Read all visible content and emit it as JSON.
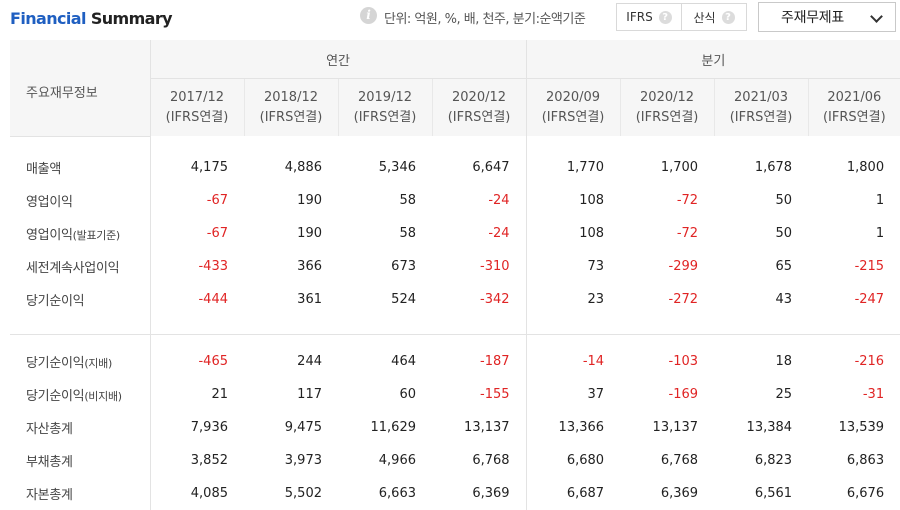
{
  "header": {
    "title_part1": "Financial",
    "title_part2": "Summary",
    "unit_text": "단위: 억원, %, 배, 천주, 분기:순액기준",
    "ifrs_label": "IFRS",
    "sansik_label": "산식",
    "dropdown_value": "주재무제표"
  },
  "table": {
    "first_header": "주요재무정보",
    "annual_header": "연간",
    "quarter_header": "분기",
    "periods": [
      {
        "date": "2017/12",
        "basis": "(IFRS연결)"
      },
      {
        "date": "2018/12",
        "basis": "(IFRS연결)"
      },
      {
        "date": "2019/12",
        "basis": "(IFRS연결)"
      },
      {
        "date": "2020/12",
        "basis": "(IFRS연결)"
      },
      {
        "date": "2020/09",
        "basis": "(IFRS연결)"
      },
      {
        "date": "2020/12",
        "basis": "(IFRS연결)"
      },
      {
        "date": "2021/03",
        "basis": "(IFRS연결)"
      },
      {
        "date": "2021/06",
        "basis": "(IFRS연결)"
      }
    ],
    "rows": [
      {
        "label": "매출액",
        "values": [
          "4,175",
          "4,886",
          "5,346",
          "6,647",
          "1,770",
          "1,700",
          "1,678",
          "1,800"
        ]
      },
      {
        "label": "영업이익",
        "values": [
          "-67",
          "190",
          "58",
          "-24",
          "108",
          "-72",
          "50",
          "1"
        ]
      },
      {
        "label_main": "영업이익",
        "label_sub": "(발표기준)",
        "values": [
          "-67",
          "190",
          "58",
          "-24",
          "108",
          "-72",
          "50",
          "1"
        ]
      },
      {
        "label": "세전계속사업이익",
        "values": [
          "-433",
          "366",
          "673",
          "-310",
          "73",
          "-299",
          "65",
          "-215"
        ]
      },
      {
        "label": "당기순이익",
        "values": [
          "-444",
          "361",
          "524",
          "-342",
          "23",
          "-272",
          "43",
          "-247"
        ]
      },
      {
        "label_main": "당기순이익",
        "label_sub": "(지배)",
        "values": [
          "-465",
          "244",
          "464",
          "-187",
          "-14",
          "-103",
          "18",
          "-216"
        ]
      },
      {
        "label_main": "당기순이익",
        "label_sub": "(비지배)",
        "values": [
          "21",
          "117",
          "60",
          "-155",
          "37",
          "-169",
          "25",
          "-31"
        ]
      },
      {
        "label": "자산총계",
        "values": [
          "7,936",
          "9,475",
          "11,629",
          "13,137",
          "13,366",
          "13,137",
          "13,384",
          "13,539"
        ]
      },
      {
        "label": "부채총계",
        "values": [
          "3,852",
          "3,973",
          "4,966",
          "6,768",
          "6,680",
          "6,768",
          "6,823",
          "6,863"
        ]
      },
      {
        "label": "자본총계",
        "values": [
          "4,085",
          "5,502",
          "6,663",
          "6,369",
          "6,687",
          "6,369",
          "6,561",
          "6,676"
        ]
      }
    ]
  }
}
